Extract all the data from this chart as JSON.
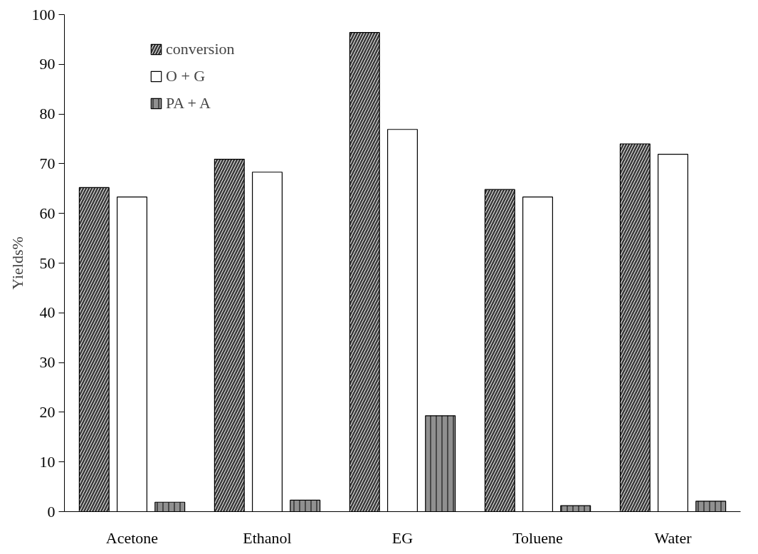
{
  "chart_data": {
    "type": "bar",
    "ylabel": "Yields%",
    "categories": [
      "Acetone",
      "Ethanol",
      "EG",
      "Toluene",
      "Water"
    ],
    "series": [
      {
        "name": "conversion",
        "color": "#3c3c3c",
        "values": [
          65.2,
          70.9,
          96.4,
          64.8,
          74.0
        ]
      },
      {
        "name": "O + G",
        "color": "#ffffff",
        "values": [
          63.3,
          68.3,
          76.9,
          63.3,
          71.9
        ]
      },
      {
        "name": "PA + A",
        "color": "#909090",
        "values": [
          1.9,
          2.3,
          19.3,
          1.2,
          2.1
        ]
      }
    ],
    "ylim": [
      0,
      100
    ],
    "yticks": [
      0,
      10,
      20,
      30,
      40,
      50,
      60,
      70,
      80,
      90,
      100
    ],
    "grid": false,
    "legend": "top left"
  }
}
